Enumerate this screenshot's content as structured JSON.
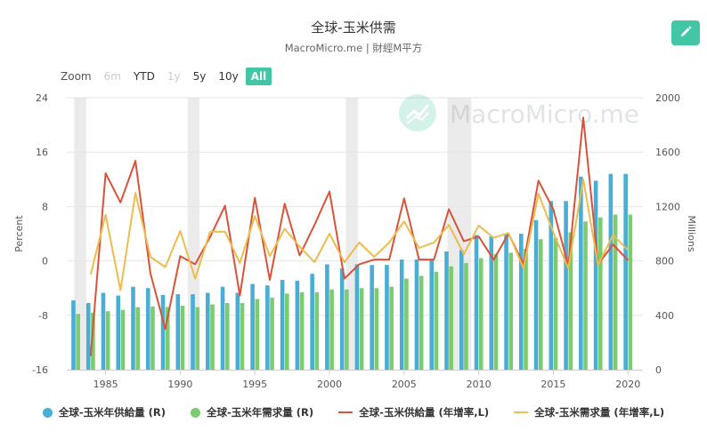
{
  "header": {
    "title": "全球-玉米供需",
    "subtitle": "MacroMicro.me | 財經M平方",
    "watermark": "MacroMicro.me"
  },
  "zoom": {
    "label": "Zoom",
    "buttons": [
      {
        "label": "6m",
        "state": "disabled"
      },
      {
        "label": "YTD",
        "state": "normal"
      },
      {
        "label": "1y",
        "state": "disabled"
      },
      {
        "label": "5y",
        "state": "normal"
      },
      {
        "label": "10y",
        "state": "normal"
      },
      {
        "label": "All",
        "state": "active"
      }
    ]
  },
  "edit_icon": "pencil-icon",
  "colors": {
    "supply_bar": "#4aaed4",
    "demand_bar": "#7ccb6f",
    "supply_line": "#d9523a",
    "demand_line": "#edbc4e",
    "accent": "#43c6a5",
    "recession": "#ebebeb"
  },
  "chart_data": {
    "type": "bar",
    "left_axis": {
      "title": "Percent",
      "range": [
        -16,
        24
      ],
      "ticks": [
        -16,
        -8,
        0,
        8,
        16,
        24
      ]
    },
    "right_axis": {
      "title": "Millions",
      "range": [
        0,
        2000
      ],
      "ticks": [
        0,
        400,
        800,
        1200,
        1600,
        2000
      ]
    },
    "x_ticks": [
      "1985",
      "1990",
      "1995",
      "2000",
      "2005",
      "2010",
      "2015",
      "2020"
    ],
    "x": [
      1983,
      1984,
      1985,
      1986,
      1987,
      1988,
      1989,
      1990,
      1991,
      1992,
      1993,
      1994,
      1995,
      1996,
      1997,
      1998,
      1999,
      2000,
      2001,
      2002,
      2003,
      2004,
      2005,
      2006,
      2007,
      2008,
      2009,
      2010,
      2011,
      2012,
      2013,
      2014,
      2015,
      2016,
      2017,
      2018,
      2019,
      2020
    ],
    "recession_periods": [
      [
        1982.9,
        1983.7
      ],
      [
        1990.5,
        1991.3
      ],
      [
        2001.1,
        2001.9
      ],
      [
        2007.9,
        2009.5
      ]
    ],
    "series": [
      {
        "name": "全球-玉米年供給量 (R)",
        "type": "bar",
        "axis": "right",
        "values": [
          510,
          490,
          565,
          545,
          610,
          600,
          550,
          555,
          555,
          565,
          610,
          565,
          630,
          620,
          660,
          655,
          705,
          775,
          745,
          775,
          770,
          770,
          810,
          810,
          810,
          870,
          880,
          990,
          980,
          1000,
          1000,
          1100,
          1240,
          1240,
          1420,
          1390,
          1440,
          1440
        ]
      },
      {
        "name": "全球-玉米年需求量 (R)",
        "type": "bar",
        "axis": "right",
        "values": [
          410,
          420,
          430,
          440,
          460,
          465,
          460,
          470,
          460,
          480,
          490,
          490,
          520,
          530,
          560,
          570,
          570,
          590,
          590,
          600,
          600,
          610,
          670,
          690,
          720,
          760,
          785,
          820,
          850,
          860,
          890,
          960,
          970,
          1010,
          1090,
          1120,
          1140,
          1140
        ]
      },
      {
        "name": "全球-玉米供給量 (年增率,L)",
        "type": "line",
        "axis": "left",
        "values": [
          null,
          -14,
          12.9,
          8.6,
          14.7,
          -1.8,
          -10,
          0.7,
          -0.5,
          3.5,
          8.1,
          -5.1,
          9.3,
          -2.8,
          8.4,
          0.8,
          5.3,
          10.2,
          -2.6,
          -0.5,
          0.2,
          0.2,
          9.2,
          0.2,
          0.2,
          7.6,
          2.9,
          3.6,
          0.2,
          4,
          -0.5,
          11.8,
          7.6,
          -0.7,
          21.1,
          -0.5,
          2.4,
          0.1
        ]
      },
      {
        "name": "全球-玉米需求量 (年增率,L)",
        "type": "line",
        "axis": "left",
        "values": [
          null,
          -2,
          6.8,
          -4.3,
          10,
          0.6,
          -0.9,
          4.4,
          -2.6,
          4.3,
          4.3,
          -0.3,
          6.6,
          0.7,
          4.7,
          2.1,
          -0.2,
          4,
          -0.2,
          2.7,
          0.6,
          2.7,
          5.8,
          1.9,
          2.7,
          5.3,
          1,
          5.2,
          3.4,
          4.1,
          -1.1,
          9.9,
          4.2,
          -1.1,
          12,
          -0.6,
          3.8,
          1.6
        ]
      }
    ]
  },
  "legend": [
    {
      "label": "全球-玉米年供給量 (R)",
      "shape": "dot",
      "color": "#4aaed4"
    },
    {
      "label": "全球-玉米年需求量 (R)",
      "shape": "dot",
      "color": "#7ccb6f"
    },
    {
      "label": "全球-玉米供給量 (年增率,L)",
      "shape": "line",
      "color": "#d9523a"
    },
    {
      "label": "全球-玉米需求量 (年增率,L)",
      "shape": "line",
      "color": "#edbc4e"
    }
  ]
}
